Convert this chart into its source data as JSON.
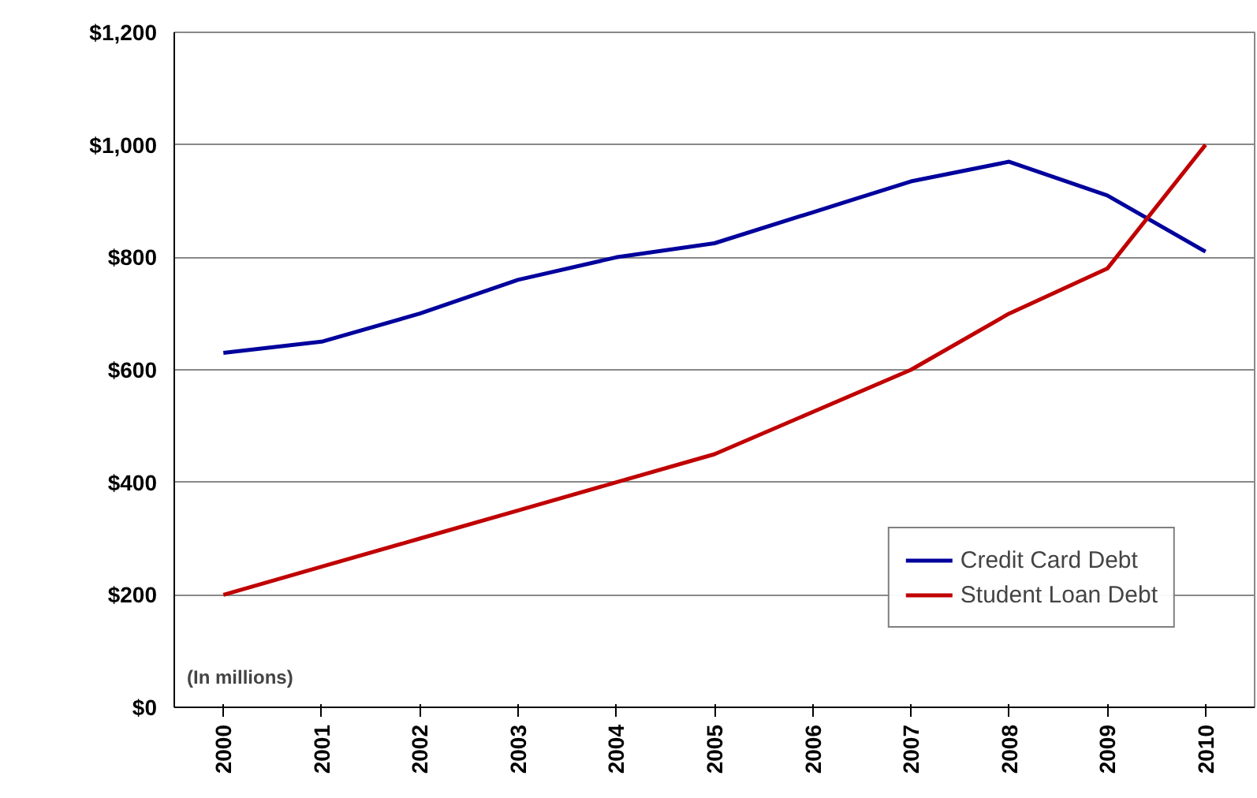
{
  "chart_data": {
    "type": "line",
    "categories": [
      "2000",
      "2001",
      "2002",
      "2003",
      "2004",
      "2005",
      "2006",
      "2007",
      "2008",
      "2009",
      "2010"
    ],
    "series": [
      {
        "name": "Credit Card Debt",
        "color": "#00009c",
        "values": [
          630,
          650,
          700,
          760,
          800,
          825,
          880,
          935,
          970,
          910,
          810
        ]
      },
      {
        "name": "Student Loan Debt",
        "color": "#c00000",
        "values": [
          200,
          250,
          300,
          350,
          400,
          450,
          525,
          600,
          700,
          780,
          1000
        ]
      }
    ],
    "ylim": [
      0,
      1200
    ],
    "yticks": [
      {
        "value": 0,
        "label": "$0"
      },
      {
        "value": 200,
        "label": "$200"
      },
      {
        "value": 400,
        "label": "$400"
      },
      {
        "value": 600,
        "label": "$600"
      },
      {
        "value": 800,
        "label": "$800"
      },
      {
        "value": 1000,
        "label": "$1,000"
      },
      {
        "value": 1200,
        "label": "$1,200"
      }
    ],
    "grid": "y",
    "legend": "bottom right",
    "marker": "none",
    "line_style": "solid",
    "annotations": [
      "(In millions)"
    ]
  }
}
